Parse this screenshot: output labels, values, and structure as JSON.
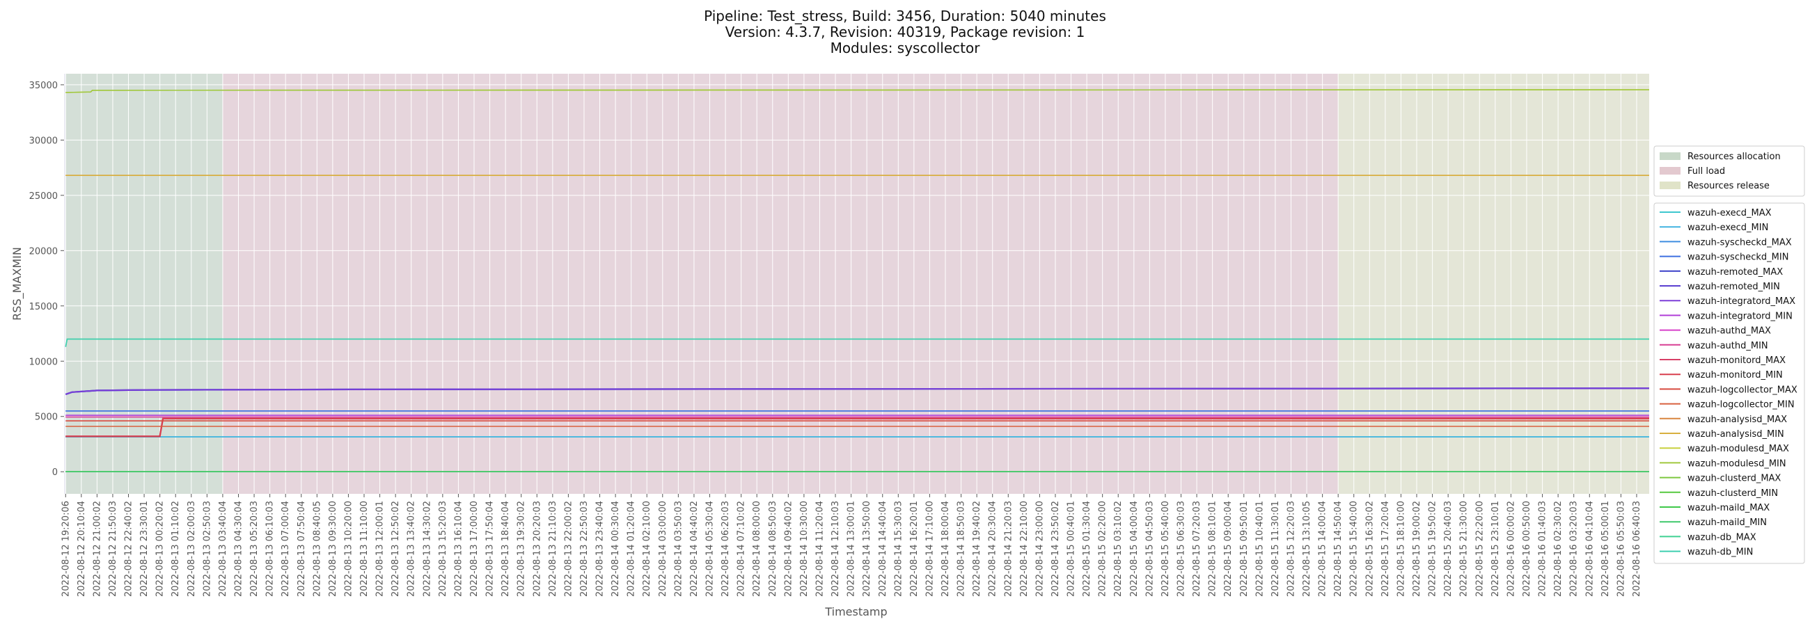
{
  "chart_data": {
    "type": "line",
    "title_lines": [
      "Pipeline: Test_stress, Build: 3456, Duration: 5040 minutes",
      "Version: 4.3.7, Revision: 40319, Package revision: 1",
      "Modules: syscollector"
    ],
    "xlabel": "Timestamp",
    "ylabel": "RSS_MAXMIN",
    "ylim": [
      -2000,
      36000
    ],
    "yticks": [
      0,
      5000,
      10000,
      15000,
      20000,
      25000,
      30000,
      35000
    ],
    "grid": true,
    "x_ticks": [
      "2022-08-12 19:20:06",
      "2022-08-12 20:10:04",
      "2022-08-12 21:00:02",
      "2022-08-12 21:50:03",
      "2022-08-12 22:40:02",
      "2022-08-12 23:30:01",
      "2022-08-13 00:20:02",
      "2022-08-13 01:10:02",
      "2022-08-13 02:00:03",
      "2022-08-13 02:50:03",
      "2022-08-13 03:40:04",
      "2022-08-13 04:30:04",
      "2022-08-13 05:20:03",
      "2022-08-13 06:10:03",
      "2022-08-13 07:00:04",
      "2022-08-13 07:50:04",
      "2022-08-13 08:40:05",
      "2022-08-13 09:30:00",
      "2022-08-13 10:20:00",
      "2022-08-13 11:10:00",
      "2022-08-13 12:00:01",
      "2022-08-13 12:50:02",
      "2022-08-13 13:40:02",
      "2022-08-13 14:30:02",
      "2022-08-13 15:20:03",
      "2022-08-13 16:10:04",
      "2022-08-13 17:00:00",
      "2022-08-13 17:50:04",
      "2022-08-13 18:40:04",
      "2022-08-13 19:30:02",
      "2022-08-13 20:20:03",
      "2022-08-13 21:10:03",
      "2022-08-13 22:00:02",
      "2022-08-13 22:50:03",
      "2022-08-13 23:40:04",
      "2022-08-14 00:30:04",
      "2022-08-14 01:20:04",
      "2022-08-14 02:10:00",
      "2022-08-14 03:00:00",
      "2022-08-14 03:50:03",
      "2022-08-14 04:40:02",
      "2022-08-14 05:30:04",
      "2022-08-14 06:20:03",
      "2022-08-14 07:10:02",
      "2022-08-14 08:00:00",
      "2022-08-14 08:50:03",
      "2022-08-14 09:40:02",
      "2022-08-14 10:30:00",
      "2022-08-14 11:20:04",
      "2022-08-14 12:10:03",
      "2022-08-14 13:00:01",
      "2022-08-14 13:50:00",
      "2022-08-14 14:40:04",
      "2022-08-14 15:30:03",
      "2022-08-14 16:20:01",
      "2022-08-14 17:10:00",
      "2022-08-14 18:00:04",
      "2022-08-14 18:50:03",
      "2022-08-14 19:40:02",
      "2022-08-14 20:30:04",
      "2022-08-14 21:20:03",
      "2022-08-14 22:10:00",
      "2022-08-14 23:00:00",
      "2022-08-14 23:50:02",
      "2022-08-15 00:40:01",
      "2022-08-15 01:30:04",
      "2022-08-15 02:20:00",
      "2022-08-15 03:10:02",
      "2022-08-15 04:00:04",
      "2022-08-15 04:50:03",
      "2022-08-15 05:40:00",
      "2022-08-15 06:30:03",
      "2022-08-15 07:20:03",
      "2022-08-15 08:10:01",
      "2022-08-15 09:00:04",
      "2022-08-15 09:50:01",
      "2022-08-15 10:40:01",
      "2022-08-15 11:30:01",
      "2022-08-15 12:20:03",
      "2022-08-15 13:10:05",
      "2022-08-15 14:00:04",
      "2022-08-15 14:50:04",
      "2022-08-15 15:40:00",
      "2022-08-15 16:30:02",
      "2022-08-15 17:20:04",
      "2022-08-15 18:10:00",
      "2022-08-15 19:00:02",
      "2022-08-15 19:50:02",
      "2022-08-15 20:40:03",
      "2022-08-15 21:30:00",
      "2022-08-15 22:20:00",
      "2022-08-15 23:10:01",
      "2022-08-16 00:00:02",
      "2022-08-16 00:50:00",
      "2022-08-16 01:40:03",
      "2022-08-16 02:30:02",
      "2022-08-16 03:20:03",
      "2022-08-16 04:10:04",
      "2022-08-16 05:00:01",
      "2022-08-16 05:50:03",
      "2022-08-16 06:40:03"
    ],
    "phases": [
      {
        "name": "Resources allocation",
        "start": "2022-08-12 19:20:06",
        "end": "2022-08-13 03:40:04",
        "color": "#c8d8c8"
      },
      {
        "name": "Full load",
        "start": "2022-08-13 03:40:04",
        "end": "2022-08-15 14:50:04",
        "color": "#e3c9cf"
      },
      {
        "name": "Resources release",
        "start": "2022-08-15 14:50:04",
        "end": "2022-08-16 07:20:00",
        "color": "#e0e3c8"
      }
    ],
    "series": [
      {
        "name": "wazuh-execd_MAX",
        "color": "#3ec7cf",
        "points": [
          [
            "2022-08-12 19:20:06",
            3150
          ],
          [
            "2022-08-16 07:20:00",
            3150
          ]
        ]
      },
      {
        "name": "wazuh-execd_MIN",
        "color": "#42b3e0",
        "points": [
          [
            "2022-08-12 19:20:06",
            3150
          ],
          [
            "2022-08-16 07:20:00",
            3150
          ]
        ]
      },
      {
        "name": "wazuh-syscheckd_MAX",
        "color": "#3f8ee0",
        "points": [
          [
            "2022-08-12 19:20:06",
            5500
          ],
          [
            "2022-08-16 07:20:00",
            5500
          ]
        ]
      },
      {
        "name": "wazuh-syscheckd_MIN",
        "color": "#3e6fe0",
        "points": [
          [
            "2022-08-12 19:20:06",
            5500
          ],
          [
            "2022-08-16 07:20:00",
            5500
          ]
        ]
      },
      {
        "name": "wazuh-remoted_MAX",
        "color": "#3a3fc8",
        "points": [
          [
            "2022-08-12 19:20:06",
            7000
          ],
          [
            "2022-08-12 19:40:00",
            7200
          ],
          [
            "2022-08-12 21:00:00",
            7350
          ],
          [
            "2022-08-12 23:30:00",
            7400
          ],
          [
            "2022-08-13 12:00:00",
            7450
          ],
          [
            "2022-08-16 07:20:00",
            7550
          ]
        ]
      },
      {
        "name": "wazuh-remoted_MIN",
        "color": "#5b3fd0",
        "points": [
          [
            "2022-08-12 19:20:06",
            7000
          ],
          [
            "2022-08-12 19:40:00",
            7200
          ],
          [
            "2022-08-12 21:00:00",
            7350
          ],
          [
            "2022-08-12 23:30:00",
            7400
          ],
          [
            "2022-08-13 12:00:00",
            7450
          ],
          [
            "2022-08-16 07:20:00",
            7550
          ]
        ]
      },
      {
        "name": "wazuh-integratord_MAX",
        "color": "#7d3fd8",
        "points": [
          [
            "2022-08-12 19:20:06",
            7000
          ],
          [
            "2022-08-12 19:40:00",
            7200
          ],
          [
            "2022-08-12 21:00:00",
            7350
          ],
          [
            "2022-08-12 23:30:00",
            7400
          ],
          [
            "2022-08-13 12:00:00",
            7450
          ],
          [
            "2022-08-16 07:20:00",
            7550
          ]
        ]
      },
      {
        "name": "wazuh-integratord_MIN",
        "color": "#b03fd8",
        "points": [
          [
            "2022-08-12 19:20:06",
            5100
          ],
          [
            "2022-08-16 07:20:00",
            5100
          ]
        ]
      },
      {
        "name": "wazuh-authd_MAX",
        "color": "#d83fc9",
        "points": [
          [
            "2022-08-12 19:20:06",
            4950
          ],
          [
            "2022-08-16 07:20:00",
            4950
          ]
        ]
      },
      {
        "name": "wazuh-authd_MIN",
        "color": "#d83f94",
        "points": [
          [
            "2022-08-12 19:20:06",
            4950
          ],
          [
            "2022-08-16 07:20:00",
            4950
          ]
        ]
      },
      {
        "name": "wazuh-monitord_MAX",
        "color": "#d83f66",
        "points": [
          [
            "2022-08-12 19:20:06",
            3200
          ],
          [
            "2022-08-13 00:20:00",
            3200
          ],
          [
            "2022-08-13 00:30:00",
            4800
          ],
          [
            "2022-08-16 07:20:00",
            4800
          ]
        ]
      },
      {
        "name": "wazuh-monitord_MIN",
        "color": "#d83f4e",
        "points": [
          [
            "2022-08-12 19:20:06",
            3200
          ],
          [
            "2022-08-13 00:20:00",
            3200
          ],
          [
            "2022-08-13 00:30:00",
            4800
          ],
          [
            "2022-08-16 07:20:00",
            4800
          ]
        ]
      },
      {
        "name": "wazuh-logcollector_MAX",
        "color": "#d84a3f",
        "points": [
          [
            "2022-08-12 19:20:06",
            4600
          ],
          [
            "2022-08-16 07:20:00",
            4600
          ]
        ]
      },
      {
        "name": "wazuh-logcollector_MIN",
        "color": "#d8603f",
        "points": [
          [
            "2022-08-12 19:20:06",
            4100
          ],
          [
            "2022-08-16 07:20:00",
            4100
          ]
        ]
      },
      {
        "name": "wazuh-analysisd_MAX",
        "color": "#d8853f",
        "points": [
          [
            "2022-08-12 19:20:06",
            26800
          ],
          [
            "2022-08-16 07:20:00",
            26800
          ]
        ]
      },
      {
        "name": "wazuh-analysisd_MIN",
        "color": "#d8b03f",
        "points": [
          [
            "2022-08-12 19:20:06",
            26800
          ],
          [
            "2022-08-16 07:20:00",
            26800
          ]
        ]
      },
      {
        "name": "wazuh-modulesd_MAX",
        "color": "#c8d03f",
        "points": [
          [
            "2022-08-12 19:20:06",
            34300
          ],
          [
            "2022-08-12 20:40:00",
            34350
          ],
          [
            "2022-08-12 20:45:00",
            34500
          ],
          [
            "2022-08-16 07:20:00",
            34550
          ]
        ]
      },
      {
        "name": "wazuh-modulesd_MIN",
        "color": "#a0c83f",
        "points": [
          [
            "2022-08-12 19:20:06",
            34300
          ],
          [
            "2022-08-12 20:40:00",
            34350
          ],
          [
            "2022-08-12 20:45:00",
            34500
          ],
          [
            "2022-08-16 07:20:00",
            34550
          ]
        ]
      },
      {
        "name": "wazuh-clusterd_MAX",
        "color": "#7cc83f",
        "points": [
          [
            "2022-08-12 19:20:06",
            0
          ],
          [
            "2022-08-16 07:20:00",
            0
          ]
        ]
      },
      {
        "name": "wazuh-clusterd_MIN",
        "color": "#55c83f",
        "points": [
          [
            "2022-08-12 19:20:06",
            0
          ],
          [
            "2022-08-16 07:20:00",
            0
          ]
        ]
      },
      {
        "name": "wazuh-maild_MAX",
        "color": "#3fc84a",
        "points": [
          [
            "2022-08-12 19:20:06",
            0
          ],
          [
            "2022-08-16 07:20:00",
            0
          ]
        ]
      },
      {
        "name": "wazuh-maild_MIN",
        "color": "#3fc86b",
        "points": [
          [
            "2022-08-12 19:20:06",
            0
          ],
          [
            "2022-08-16 07:20:00",
            0
          ]
        ]
      },
      {
        "name": "wazuh-db_MAX",
        "color": "#3fd092",
        "points": [
          [
            "2022-08-12 19:20:06",
            11300
          ],
          [
            "2022-08-12 19:25:00",
            12000
          ],
          [
            "2022-08-16 07:20:00",
            12000
          ]
        ]
      },
      {
        "name": "wazuh-db_MIN",
        "color": "#3fcfb0",
        "points": [
          [
            "2022-08-12 19:20:06",
            11300
          ],
          [
            "2022-08-12 19:25:00",
            12000
          ],
          [
            "2022-08-16 07:20:00",
            12000
          ]
        ]
      }
    ]
  }
}
